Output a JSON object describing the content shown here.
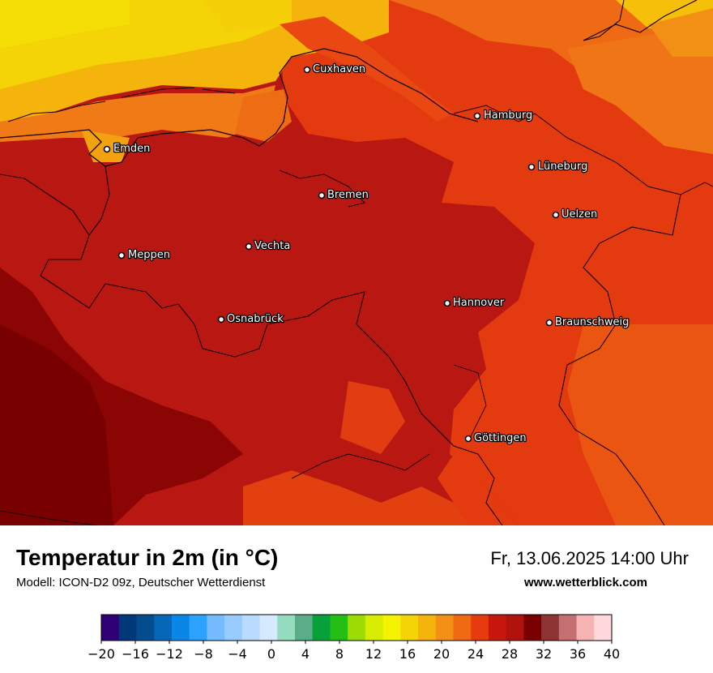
{
  "map": {
    "cities": [
      {
        "name": "Cuxhaven"
      },
      {
        "name": "Hamburg"
      },
      {
        "name": "Emden"
      },
      {
        "name": "Lüneburg"
      },
      {
        "name": "Bremen"
      },
      {
        "name": "Uelzen"
      },
      {
        "name": "Vechta"
      },
      {
        "name": "Meppen"
      },
      {
        "name": "Hannover"
      },
      {
        "name": "Osnabrück"
      },
      {
        "name": "Braunschweig"
      },
      {
        "name": "Göttingen"
      }
    ]
  },
  "footer": {
    "title": "Temperatur in 2m (in °C)",
    "subtitle": "Modell: ICON-D2 09z, Deutscher Wetterdienst",
    "datetime": "Fr, 13.06.2025 14:00 Uhr",
    "website": "www.wetterblick.com"
  },
  "legend": {
    "unit": "°C",
    "min": -20,
    "max": 40,
    "step": 2,
    "tick_labels": [
      "−20",
      "−16",
      "−12",
      "−8",
      "−4",
      "0",
      "4",
      "8",
      "12",
      "16",
      "20",
      "24",
      "28",
      "32",
      "36",
      "40"
    ],
    "colors": [
      "#2f0075",
      "#00387a",
      "#034d8f",
      "#0467b8",
      "#0a87e6",
      "#2da1ff",
      "#74bbff",
      "#98cbff",
      "#b8dbff",
      "#d6eaff",
      "#96dcc0",
      "#5aad86",
      "#06a13a",
      "#23bf15",
      "#9cdc03",
      "#d6ec00",
      "#f4f400",
      "#f4d307",
      "#f4b40b",
      "#f49015",
      "#f06a13",
      "#e83a0f",
      "#c8170f",
      "#b0120e",
      "#7a0000",
      "#8e3434",
      "#c47070",
      "#f5b3b3",
      "#ffd9dc"
    ]
  }
}
